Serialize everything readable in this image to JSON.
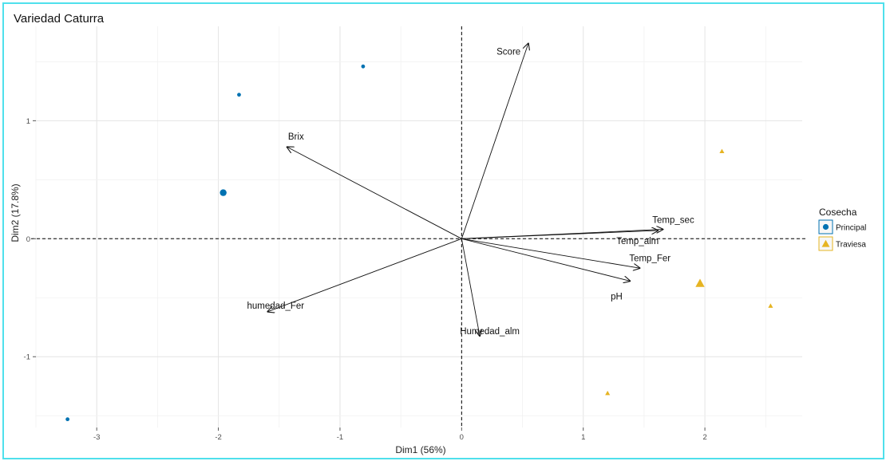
{
  "chart_data": {
    "type": "scatter",
    "title": "Variedad Caturra",
    "xlabel": "Dim1 (56%)",
    "ylabel": "Dim2 (17.8%)",
    "xlim": [
      -3.5,
      2.8
    ],
    "ylim": [
      -1.6,
      1.8
    ],
    "x_ticks": [
      -3,
      -2,
      -1,
      0,
      1,
      2
    ],
    "y_ticks": [
      -1,
      0,
      1
    ],
    "grid": true,
    "legend": {
      "title": "Cosecha",
      "position": "right",
      "entries": [
        {
          "label": "Principal",
          "color": "#0072b2",
          "shape": "circle"
        },
        {
          "label": "Traviesa",
          "color": "#e6b422",
          "shape": "triangle"
        }
      ]
    },
    "series": [
      {
        "name": "Principal",
        "color": "#0072b2",
        "shape": "circle",
        "points": [
          {
            "x": -1.83,
            "y": 1.22
          },
          {
            "x": -0.81,
            "y": 1.46
          },
          {
            "x": -3.24,
            "y": -1.53
          }
        ],
        "centroid": {
          "x": -1.96,
          "y": 0.39
        }
      },
      {
        "name": "Traviesa",
        "color": "#e6b422",
        "shape": "triangle",
        "points": [
          {
            "x": 2.14,
            "y": 0.74
          },
          {
            "x": 2.54,
            "y": -0.57
          },
          {
            "x": 1.2,
            "y": -1.31
          }
        ],
        "centroid": {
          "x": 1.96,
          "y": -0.38
        }
      }
    ],
    "variables": [
      {
        "name": "Score",
        "x": 0.55,
        "y": 1.66
      },
      {
        "name": "Brix",
        "x": -1.44,
        "y": 0.78
      },
      {
        "name": "Temp_sec",
        "x": 1.66,
        "y": 0.08
      },
      {
        "name": "Temp_alm",
        "x": 1.62,
        "y": 0.07
      },
      {
        "name": "Temp_Fer",
        "x": 1.47,
        "y": -0.25
      },
      {
        "name": "pH",
        "x": 1.39,
        "y": -0.36
      },
      {
        "name": "humedad_Fer",
        "x": -1.6,
        "y": -0.62
      },
      {
        "name": "Humedad_alm",
        "x": 0.15,
        "y": -0.83
      }
    ]
  }
}
